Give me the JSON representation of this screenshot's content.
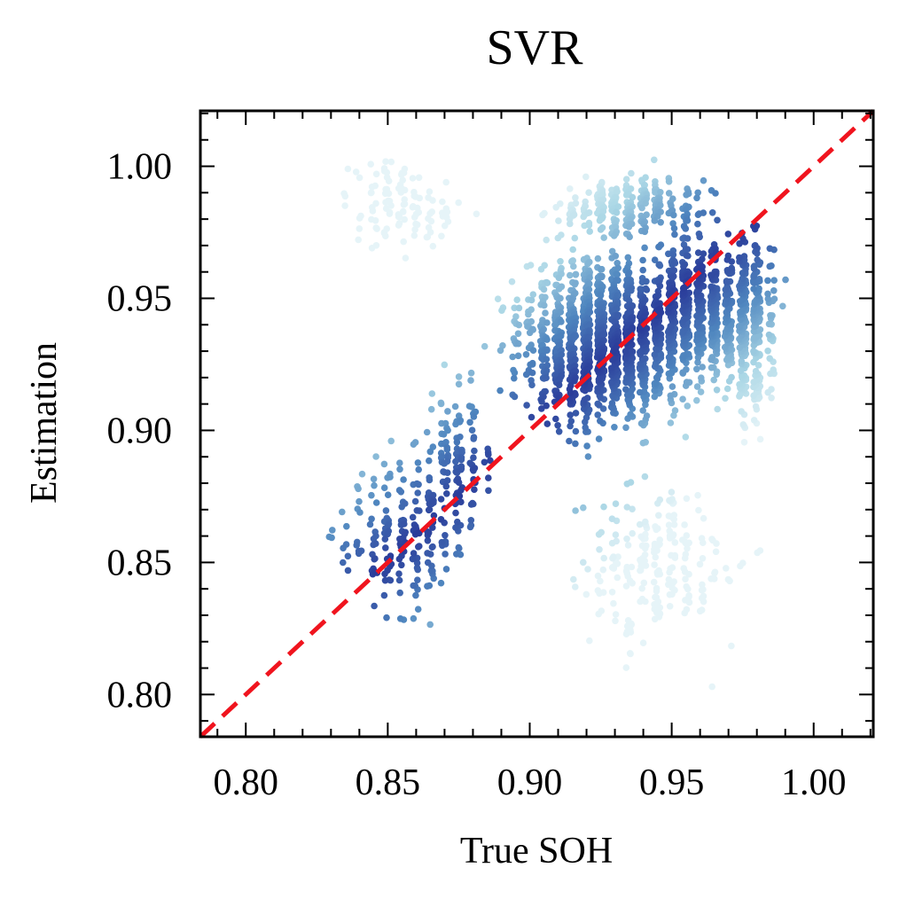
{
  "chart_data": {
    "type": "scatter",
    "title": "SVR",
    "xlabel": "True SOH",
    "ylabel": "Estimation",
    "xlim": [
      0.784,
      1.021
    ],
    "ylim": [
      0.784,
      1.021
    ],
    "xticks": [
      0.8,
      0.85,
      0.9,
      0.95,
      1.0
    ],
    "yticks": [
      0.8,
      0.85,
      0.9,
      0.95,
      1.0
    ],
    "xtick_labels": [
      "0.80",
      "0.85",
      "0.90",
      "0.95",
      "1.00"
    ],
    "ytick_labels": [
      "0.80",
      "0.85",
      "0.90",
      "0.95",
      "1.00"
    ],
    "minor_tick_step": 0.01,
    "grid": false,
    "reference_line": {
      "from": [
        0.784,
        0.784
      ],
      "to": [
        1.021,
        1.021
      ],
      "color": "#f0141e",
      "style": "dashed"
    },
    "colormap": {
      "near_line": "#2a3c9a",
      "mid": "#4f86bf",
      "far": "#a9d6e5",
      "farthest": "#e6f4f8"
    },
    "clusters": [
      {
        "cx": 0.855,
        "cy": 0.86,
        "rx": 0.022,
        "ry": 0.035,
        "count": 190
      },
      {
        "cx": 0.874,
        "cy": 0.89,
        "rx": 0.012,
        "ry": 0.03,
        "count": 120
      },
      {
        "cx": 0.925,
        "cy": 0.935,
        "rx": 0.03,
        "ry": 0.035,
        "count": 1300
      },
      {
        "cx": 0.96,
        "cy": 0.945,
        "rx": 0.025,
        "ry": 0.03,
        "count": 650
      },
      {
        "cx": 0.978,
        "cy": 0.94,
        "rx": 0.009,
        "ry": 0.04,
        "count": 260
      },
      {
        "cx": 0.935,
        "cy": 0.985,
        "rx": 0.03,
        "ry": 0.012,
        "count": 260
      },
      {
        "cx": 0.945,
        "cy": 0.85,
        "rx": 0.03,
        "ry": 0.035,
        "count": 230
      },
      {
        "cx": 0.855,
        "cy": 0.985,
        "rx": 0.022,
        "ry": 0.018,
        "count": 110
      }
    ]
  }
}
